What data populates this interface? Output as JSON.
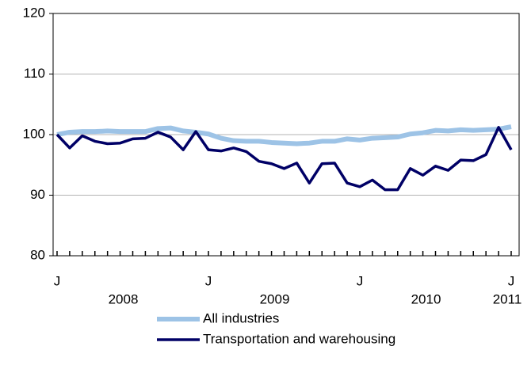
{
  "chart_data": {
    "type": "line",
    "categories": [
      "J",
      null,
      null,
      null,
      null,
      null,
      null,
      null,
      null,
      null,
      null,
      null,
      "J",
      null,
      null,
      null,
      null,
      null,
      null,
      null,
      null,
      null,
      null,
      null,
      "J",
      null,
      null,
      null,
      null,
      null,
      null,
      null,
      null,
      null,
      null,
      null,
      "J"
    ],
    "year_labels": [
      "2008",
      "2009",
      "2010",
      "2011"
    ],
    "series": [
      {
        "name": "All industries",
        "color": "#9dc3e6",
        "values": [
          100,
          100.4,
          100.5,
          100.5,
          100.6,
          100.5,
          100.5,
          100.5,
          101,
          101.1,
          100.6,
          100.4,
          100.1,
          99.4,
          99.0,
          98.9,
          98.9,
          98.7,
          98.6,
          98.5,
          98.6,
          98.9,
          98.9,
          99.3,
          99.1,
          99.4,
          99.5,
          99.6,
          100.1,
          100.3,
          100.7,
          100.6,
          100.8,
          100.7,
          100.8,
          100.9,
          101.3
        ]
      },
      {
        "name": "Transportation and warehousing",
        "color": "#000066",
        "values": [
          100,
          97.8,
          99.8,
          98.9,
          98.5,
          98.6,
          99.3,
          99.4,
          100.4,
          99.6,
          97.5,
          100.5,
          97.5,
          97.3,
          97.8,
          97.2,
          95.6,
          95.2,
          94.4,
          95.3,
          92.0,
          95.2,
          95.3,
          92.0,
          91.4,
          92.5,
          90.9,
          90.9,
          94.4,
          93.3,
          94.8,
          94.1,
          95.8,
          95.7,
          96.7,
          101.2,
          97.5
        ]
      }
    ],
    "ylim": [
      80,
      120
    ],
    "yticks": [
      80,
      90,
      100,
      110,
      120
    ],
    "grid": true
  }
}
